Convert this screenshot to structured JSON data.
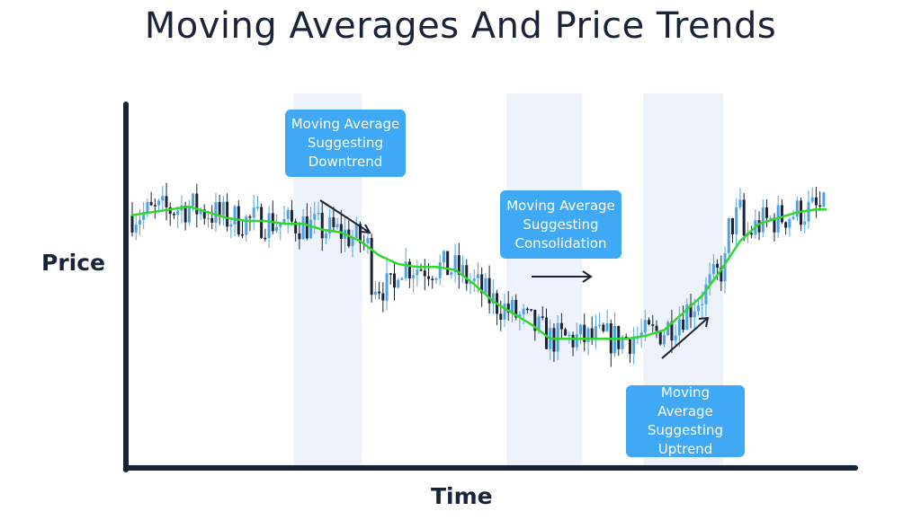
{
  "title": "Moving Averages And Price Trends",
  "axes": {
    "ylabel": "Price",
    "xlabel": "Time"
  },
  "annotations": [
    {
      "text": "Moving Average Suggesting Downtrend"
    },
    {
      "text": "Moving Average Suggesting Consolidation"
    },
    {
      "text": "Moving Average Suggesting Uptrend"
    }
  ],
  "colors": {
    "up_candle": "#4ea3e8",
    "down_candle": "#1a2338",
    "moving_average": "#33d62b",
    "callout": "#3fa9f5",
    "axis": "#1a2338",
    "highlight": "#eef3fb"
  },
  "chart_data": {
    "type": "candlestick",
    "title": "Moving Averages And Price Trends",
    "xlabel": "Time",
    "ylabel": "Price",
    "grid": false,
    "legend": "none",
    "ma_series": [
      [
        0,
        72
      ],
      [
        10,
        73
      ],
      [
        20,
        74
      ],
      [
        30,
        75
      ],
      [
        40,
        73
      ],
      [
        50,
        71
      ],
      [
        60,
        70
      ],
      [
        70,
        70
      ],
      [
        80,
        69
      ],
      [
        90,
        69
      ],
      [
        100,
        67
      ],
      [
        110,
        66
      ],
      [
        120,
        63
      ],
      [
        130,
        58
      ],
      [
        140,
        55
      ],
      [
        150,
        54
      ],
      [
        160,
        54
      ],
      [
        170,
        53
      ],
      [
        180,
        48
      ],
      [
        190,
        42
      ],
      [
        200,
        38
      ],
      [
        210,
        34
      ],
      [
        220,
        29
      ],
      [
        230,
        29
      ],
      [
        240,
        29
      ],
      [
        250,
        29
      ],
      [
        260,
        29
      ],
      [
        270,
        30
      ],
      [
        280,
        32
      ],
      [
        290,
        38
      ],
      [
        300,
        44
      ],
      [
        310,
        53
      ],
      [
        320,
        63
      ],
      [
        330,
        69
      ],
      [
        340,
        71
      ],
      [
        350,
        73
      ],
      [
        360,
        74
      ],
      [
        365,
        74
      ]
    ],
    "highlight_zones": [
      [
        85,
        121
      ],
      [
        197,
        237
      ],
      [
        269,
        311
      ]
    ]
  }
}
